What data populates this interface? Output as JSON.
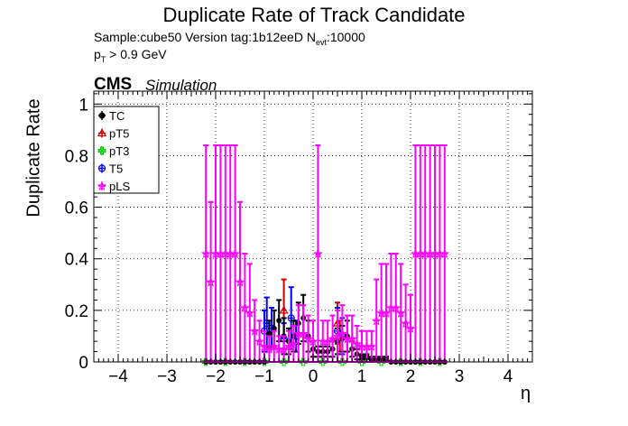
{
  "title": "Duplicate Rate of Track Candidate",
  "info": {
    "sample_label": "Sample:cube50   Version tag:1b12eeD  N",
    "nevt_sub": "evt",
    "nevt_value": ":10000",
    "pt_prefix": "p",
    "pt_sub": "T",
    "pt_cut": " > 0.9 GeV"
  },
  "cms_label": "CMS",
  "simulation_label": "Simulation",
  "chart_data": {
    "type": "scatter",
    "xlabel": "η",
    "ylabel": "Duplicate Rate",
    "xlim": [
      -4.5,
      4.5
    ],
    "ylim": [
      0,
      1.05
    ],
    "xticks": [
      "−4",
      "−3",
      "−2",
      "−1",
      "0",
      "1",
      "2",
      "3",
      "4"
    ],
    "yticks": [
      "0",
      "0.2",
      "0.4",
      "0.6",
      "0.8",
      "1"
    ],
    "grid": true,
    "legend_position": "top-left",
    "colors": {
      "TC": "#000000",
      "pT5": "#cc0000",
      "pT3": "#00cc00",
      "T5": "#0000ff",
      "pLS": "#ff00ff"
    },
    "series": [
      {
        "name": "TC",
        "marker": "filled-circle",
        "color": "#000000",
        "x": [
          -2.2,
          -2.1,
          -2.0,
          -1.9,
          -1.8,
          -1.7,
          -1.6,
          -1.5,
          -1.4,
          -1.3,
          -1.2,
          -1.1,
          -1.0,
          -0.9,
          -0.8,
          -0.7,
          -0.6,
          -0.5,
          -0.4,
          -0.3,
          -0.2,
          -0.1,
          0.0,
          0.1,
          0.2,
          0.3,
          0.4,
          0.5,
          0.6,
          0.7,
          0.8,
          0.9,
          1.0,
          1.1,
          1.2,
          1.3,
          1.4,
          1.5,
          1.6,
          1.7,
          1.8,
          1.9,
          2.0,
          2.1,
          2.2,
          2.3,
          2.4,
          2.5,
          2.6,
          2.7
        ],
        "y": [
          0,
          0,
          0,
          0,
          0,
          0,
          0,
          0,
          0,
          0,
          0,
          0,
          0,
          0.11,
          0.13,
          0.16,
          0.1,
          0.08,
          0.1,
          0.15,
          0.17,
          0.1,
          0.05,
          0.04,
          0.04,
          0.04,
          0.05,
          0.08,
          0.09,
          0.1,
          0.05,
          0.03,
          0.02,
          0.02,
          0.01,
          0.01,
          0.01,
          0.01,
          0.0,
          0.0,
          0.0,
          0.0,
          0,
          0,
          0,
          0,
          0,
          0,
          0,
          0
        ],
        "yerr": [
          0,
          0,
          0,
          0,
          0,
          0,
          0,
          0,
          0,
          0,
          0,
          0,
          0,
          0.05,
          0.07,
          0.08,
          0.07,
          0.05,
          0.06,
          0.08,
          0.09,
          0.06,
          0.03,
          0.02,
          0.02,
          0.02,
          0.03,
          0.05,
          0.05,
          0.06,
          0.03,
          0.02,
          0.01,
          0.01,
          0.01,
          0.01,
          0.01,
          0.01,
          0,
          0,
          0,
          0,
          0,
          0,
          0,
          0,
          0,
          0,
          0,
          0
        ]
      },
      {
        "name": "pT5",
        "marker": "open-triangle",
        "color": "#cc0000",
        "x": [
          -0.6,
          0.5,
          0.55
        ],
        "y": [
          0.2,
          0.15,
          0.1
        ],
        "yerr": [
          0.12,
          0.08,
          0.06
        ]
      },
      {
        "name": "pT3",
        "marker": "open-cross",
        "color": "#00cc00",
        "x": [
          -2.2,
          -1.8,
          -1.4,
          -1.0,
          -0.6,
          -0.2,
          0.2,
          0.6,
          1.0,
          1.4,
          1.8,
          2.2,
          2.6
        ],
        "y": [
          0,
          0,
          0,
          0,
          0,
          0,
          0,
          0,
          0,
          0,
          0,
          0,
          0
        ],
        "yerr": [
          0,
          0,
          0,
          0,
          0,
          0,
          0,
          0,
          0,
          0,
          0,
          0,
          0
        ]
      },
      {
        "name": "T5",
        "marker": "open-circle",
        "color": "#0000ff",
        "x": [
          -1.0,
          -0.95,
          -0.85,
          -0.6,
          -0.45,
          -0.35,
          0.5,
          0.6
        ],
        "y": [
          0.12,
          0.15,
          0.13,
          0.09,
          0.17,
          0.1,
          0.12,
          0.1
        ],
        "yerr": [
          0.08,
          0.1,
          0.08,
          0.06,
          0.12,
          0.06,
          0.09,
          0.07
        ]
      },
      {
        "name": "pLS",
        "marker": "open-star",
        "color": "#ff00ff",
        "x": [
          -2.2,
          -2.1,
          -2.0,
          -1.9,
          -1.8,
          -1.7,
          -1.6,
          -1.5,
          -1.4,
          -1.3,
          -1.2,
          -1.1,
          -1.0,
          -0.9,
          -0.8,
          -0.7,
          -0.6,
          -0.5,
          -0.4,
          -0.3,
          -0.2,
          -0.1,
          0.0,
          0.1,
          0.2,
          0.3,
          0.4,
          0.5,
          0.6,
          0.7,
          0.8,
          0.9,
          1.0,
          1.1,
          1.2,
          1.3,
          1.4,
          1.5,
          1.6,
          1.7,
          1.8,
          1.9,
          2.0,
          2.1,
          2.2,
          2.3,
          2.4,
          2.5,
          2.6,
          2.7
        ],
        "y": [
          0.42,
          0.31,
          0.42,
          0.42,
          0.42,
          0.42,
          0.42,
          0.31,
          0.21,
          0.19,
          0.12,
          0.08,
          0.06,
          0.05,
          0.06,
          0.05,
          0.05,
          0.06,
          0.07,
          0.11,
          0.11,
          0.09,
          0.08,
          0.42,
          0.08,
          0.08,
          0.09,
          0.1,
          0.11,
          0.09,
          0.09,
          0.07,
          0.06,
          0.06,
          0.06,
          0.16,
          0.19,
          0.19,
          0.21,
          0.21,
          0.19,
          0.15,
          0.13,
          0.42,
          0.42,
          0.42,
          0.42,
          0.42,
          0.42,
          0.42
        ],
        "yerr": [
          0.42,
          0.31,
          0.42,
          0.42,
          0.42,
          0.42,
          0.42,
          0.31,
          0.21,
          0.19,
          0.12,
          0.08,
          0.06,
          0.05,
          0.06,
          0.05,
          0.05,
          0.06,
          0.07,
          0.11,
          0.11,
          0.09,
          0.08,
          0.42,
          0.08,
          0.08,
          0.09,
          0.1,
          0.11,
          0.09,
          0.09,
          0.07,
          0.06,
          0.06,
          0.06,
          0.16,
          0.19,
          0.19,
          0.21,
          0.21,
          0.19,
          0.15,
          0.13,
          0.42,
          0.42,
          0.42,
          0.42,
          0.42,
          0.42,
          0.42
        ]
      }
    ]
  }
}
